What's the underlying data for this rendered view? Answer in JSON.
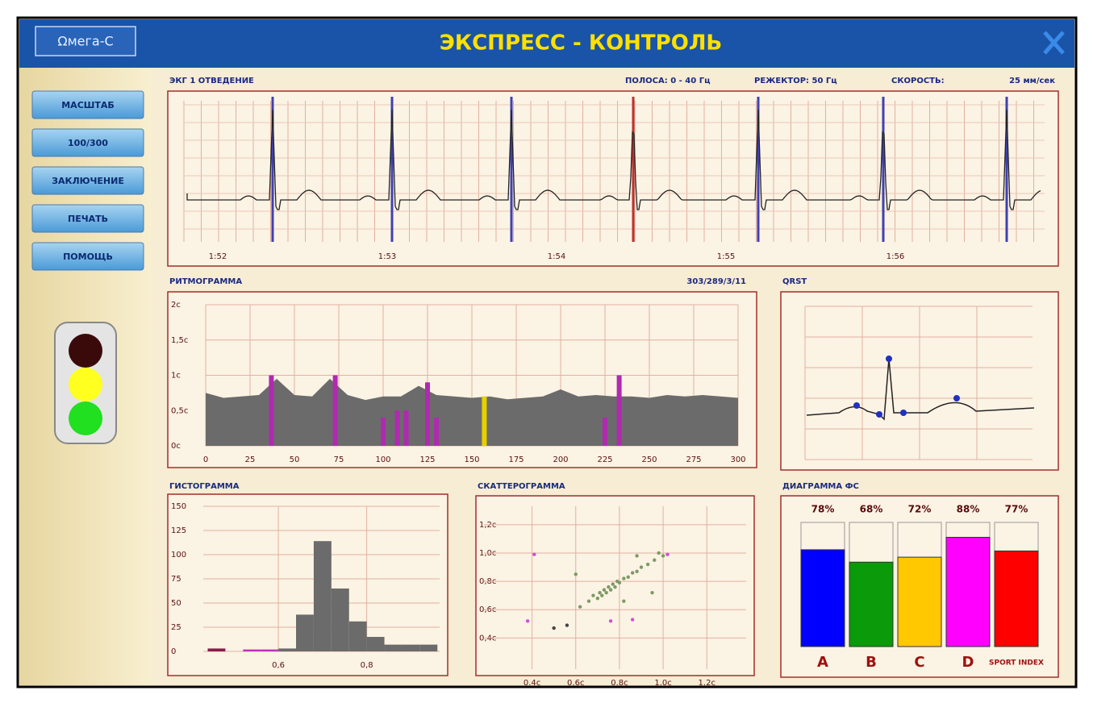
{
  "header": {
    "logo": "Ωмега-С",
    "title": "ЭКСПРЕСС - КОНТРОЛЬ"
  },
  "sidebar": {
    "buttons": [
      "МАСШТАБ",
      "100/300",
      "ЗАКЛЮЧЕНИЕ",
      "ПЕЧАТЬ",
      "ПОМОЩЬ"
    ]
  },
  "ecg": {
    "title": "ЭКГ 1 ОТВЕДЕНИЕ",
    "band": "ПОЛОСА: 0 - 40 Гц",
    "notch": "РЕЖЕКТОР: 50 Гц",
    "speed_label": "СКОРОСТЬ:",
    "speed": "25 мм/сек",
    "time_labels": [
      "1:52",
      "1:53",
      "1:54",
      "1:55",
      "1:56"
    ]
  },
  "qrst": {
    "title": "QRST"
  },
  "chart_data": [
    {
      "type": "area",
      "title": "РИТМОГРАММА",
      "subtitle": "303/289/3/11",
      "x": [
        0,
        10,
        20,
        30,
        40,
        50,
        60,
        70,
        80,
        90,
        100,
        110,
        120,
        130,
        140,
        150,
        160,
        170,
        180,
        190,
        200,
        210,
        220,
        230,
        240,
        250,
        260,
        270,
        280,
        290,
        300
      ],
      "values": [
        0.75,
        0.68,
        0.7,
        0.72,
        0.95,
        0.72,
        0.7,
        0.95,
        0.72,
        0.65,
        0.7,
        0.7,
        0.85,
        0.72,
        0.7,
        0.68,
        0.7,
        0.66,
        0.68,
        0.7,
        0.8,
        0.7,
        0.72,
        0.7,
        0.7,
        0.68,
        0.72,
        0.7,
        0.72,
        0.7,
        0.68
      ],
      "color": "#6b6b6b",
      "highlights": {
        "x": [
          37,
          73,
          100,
          108,
          113,
          125,
          130,
          157,
          225,
          233
        ],
        "values": [
          1.0,
          1.0,
          0.4,
          0.5,
          0.5,
          0.9,
          0.4,
          0.7,
          0.4,
          1.0
        ],
        "colors": [
          "#b02ab0",
          "#b02ab0",
          "#b02ab0",
          "#b02ab0",
          "#b02ab0",
          "#b02ab0",
          "#b02ab0",
          "#e6d000",
          "#b02ab0",
          "#b02ab0"
        ]
      },
      "xlim": [
        0,
        300
      ],
      "ylim": [
        0,
        2
      ],
      "xticks": [
        0,
        25,
        50,
        75,
        100,
        125,
        150,
        175,
        200,
        225,
        250,
        275,
        300
      ],
      "yticks": [
        {
          "value": 0,
          "label": "0с"
        },
        {
          "value": 0.5,
          "label": "0,5с"
        },
        {
          "value": 1,
          "label": "1с"
        },
        {
          "value": 1.5,
          "label": "1,5с"
        },
        {
          "value": 2,
          "label": "2с"
        }
      ],
      "grid": true
    },
    {
      "type": "histogram",
      "title": "ГИСТОГРАММА",
      "bins": [
        0.44,
        0.48,
        0.52,
        0.56,
        0.6,
        0.64,
        0.68,
        0.72,
        0.76,
        0.8,
        0.84,
        0.88,
        0.92,
        0.96
      ],
      "values": [
        3,
        0,
        2,
        2,
        3,
        38,
        114,
        65,
        31,
        15,
        7,
        7,
        7
      ],
      "colors": [
        "#8a1a4a",
        "#6b6b6b",
        "#c030c0",
        "#c030c0",
        "#6b6b6b",
        "#6b6b6b",
        "#6b6b6b",
        "#6b6b6b",
        "#6b6b6b",
        "#6b6b6b",
        "#6b6b6b",
        "#6b6b6b",
        "#6b6b6b"
      ],
      "xlim": [
        0.43,
        0.965
      ],
      "ylim": [
        0,
        150
      ],
      "xticks": [
        {
          "value": 0.6,
          "label": "0,6"
        },
        {
          "value": 0.8,
          "label": "0,8"
        }
      ],
      "yticks": [
        0,
        25,
        50,
        75,
        100,
        125,
        150
      ],
      "grid": true
    },
    {
      "type": "scatter",
      "title": "СКАТТЕРОГРАММА",
      "x": [
        0.66,
        0.68,
        0.7,
        0.71,
        0.72,
        0.73,
        0.74,
        0.75,
        0.76,
        0.77,
        0.78,
        0.79,
        0.8,
        0.82,
        0.84,
        0.86,
        0.88,
        0.9,
        0.93,
        0.96,
        1.0,
        0.98,
        0.88,
        0.62,
        0.6,
        0.82,
        0.95,
        0.41,
        0.38,
        0.5,
        0.56,
        0.76,
        0.86,
        1.02
      ],
      "values": [
        0.66,
        0.7,
        0.68,
        0.72,
        0.7,
        0.74,
        0.72,
        0.76,
        0.74,
        0.78,
        0.76,
        0.8,
        0.79,
        0.82,
        0.83,
        0.86,
        0.87,
        0.9,
        0.92,
        0.95,
        0.98,
        1.0,
        0.98,
        0.62,
        0.85,
        0.66,
        0.72,
        0.99,
        0.52,
        0.47,
        0.49,
        0.52,
        0.53,
        0.99
      ],
      "colors": [
        "#7d9a66",
        "#7d9a66",
        "#7d9a66",
        "#7d9a66",
        "#7d9a66",
        "#7d9a66",
        "#7d9a66",
        "#7d9a66",
        "#7d9a66",
        "#7d9a66",
        "#7d9a66",
        "#7d9a66",
        "#7d9a66",
        "#7d9a66",
        "#7d9a66",
        "#7d9a66",
        "#7d9a66",
        "#7d9a66",
        "#7d9a66",
        "#7d9a66",
        "#7d9a66",
        "#7d9a66",
        "#7d9a66",
        "#7d9a66",
        "#7d9a66",
        "#7d9a66",
        "#7d9a66",
        "#d050d0",
        "#d050d0",
        "#444444",
        "#444444",
        "#d050d0",
        "#d050d0",
        "#d050d0"
      ],
      "xlim": [
        0.18,
        1.38
      ],
      "ylim": [
        0.18,
        1.33
      ],
      "xticks": [
        {
          "value": 0.4,
          "label": "0.4с"
        },
        {
          "value": 0.6,
          "label": "0.6с"
        },
        {
          "value": 0.8,
          "label": "0.8с"
        },
        {
          "value": 1.0,
          "label": "1.0с"
        },
        {
          "value": 1.2,
          "label": "1.2с"
        }
      ],
      "yticks": [
        {
          "value": 0.4,
          "label": "0,4с"
        },
        {
          "value": 0.6,
          "label": "0,6с"
        },
        {
          "value": 0.8,
          "label": "0,8с"
        },
        {
          "value": 1.0,
          "label": "1,0с"
        },
        {
          "value": 1.2,
          "label": "1,2с"
        }
      ],
      "grid": true
    },
    {
      "type": "bar",
      "title": "ДИАГРАММА ФС",
      "categories": [
        "A",
        "B",
        "C",
        "D",
        "SPORT INDEX"
      ],
      "values": [
        78,
        68,
        72,
        88,
        77
      ],
      "value_labels": [
        "78%",
        "68%",
        "72%",
        "88%",
        "77%"
      ],
      "colors": [
        "#0000ff",
        "#0a9a0a",
        "#ffc800",
        "#ff00ff",
        "#ff0000"
      ],
      "ylim": [
        0,
        100
      ]
    }
  ]
}
